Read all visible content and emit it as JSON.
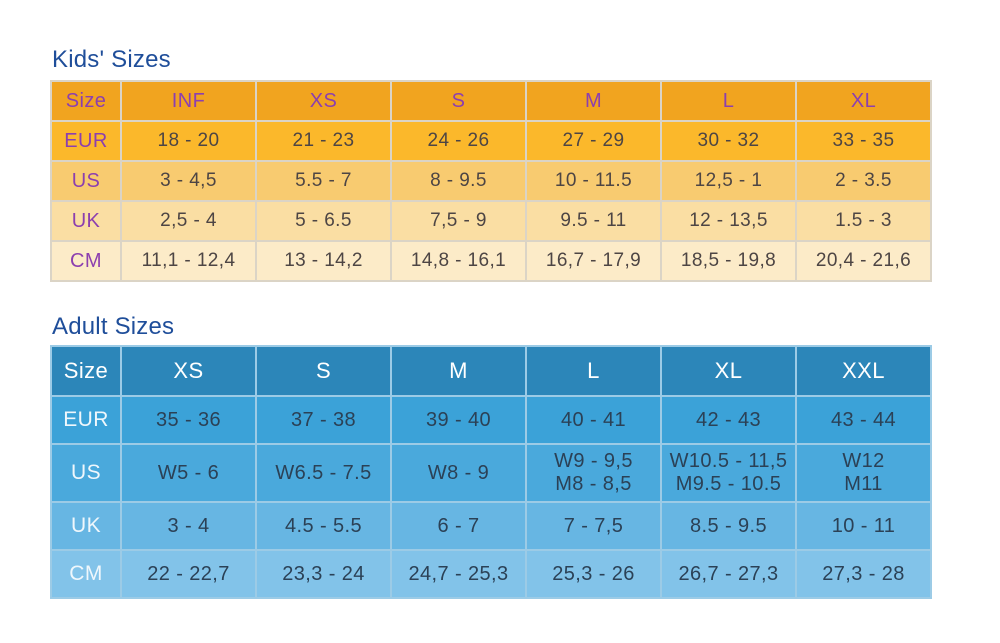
{
  "page": {
    "background": "#FFFFFF",
    "title_color": "#1F4E9A"
  },
  "kids_table": {
    "title": "Kids' Sizes",
    "columns": [
      "Size",
      "INF",
      "XS",
      "S",
      "M",
      "L",
      "XL"
    ],
    "rows": [
      {
        "label": "EUR",
        "values": [
          "18 - 20",
          "21 - 23",
          "24 - 26",
          "27 - 29",
          "30 - 32",
          "33 - 35"
        ]
      },
      {
        "label": "US",
        "values": [
          "3 - 4,5",
          "5.5 - 7",
          "8 - 9.5",
          "10 - 11.5",
          "12,5 - 1",
          "2 - 3.5"
        ]
      },
      {
        "label": "UK",
        "values": [
          "2,5 - 4",
          "5 - 6.5",
          "7,5 - 9",
          "9.5 - 11",
          "12 - 13,5",
          "1.5 - 3"
        ]
      },
      {
        "label": "CM",
        "values": [
          "11,1 - 12,4",
          "13 - 14,2",
          "14,8 - 16,1",
          "16,7 - 17,9",
          "18,5 - 19,8",
          "20,4 - 21,6"
        ]
      }
    ],
    "colors": {
      "header_bg": "#F1A41F",
      "header_text": "#8C3FAF",
      "row_backgrounds": [
        "#FBB82B",
        "#F8CB70",
        "#FADEA3",
        "#FCEBC8"
      ],
      "label_text": "#8C3FAF",
      "value_text": "#4D4544",
      "divider": "#DBD4C6"
    }
  },
  "adult_table": {
    "title": "Adult Sizes",
    "columns": [
      "Size",
      "XS",
      "S",
      "M",
      "L",
      "XL",
      "XXL"
    ],
    "rows": [
      {
        "label": "EUR",
        "values": [
          "35 - 36",
          "37 - 38",
          "39 - 40",
          "40 - 41",
          "42 - 43",
          "43 - 44"
        ]
      },
      {
        "label": "US",
        "values": [
          "W5 - 6",
          "W6.5 - 7.5",
          "W8 - 9",
          "W9 - 9,5\nM8 - 8,5",
          "W10.5 - 11,5\nM9.5 - 10.5",
          "W12\nM11"
        ]
      },
      {
        "label": "UK",
        "values": [
          "3 - 4",
          "4.5 - 5.5",
          "6 - 7",
          "7 - 7,5",
          "8.5 - 9.5",
          "10 - 11"
        ]
      },
      {
        "label": "CM",
        "values": [
          "22 - 22,7",
          "23,3 - 24",
          "24,7 - 25,3",
          "25,3 - 26",
          "26,7 - 27,3",
          "27,3 - 28"
        ]
      }
    ],
    "colors": {
      "header_bg": "#2C86B9",
      "header_text": "#FFFFFF",
      "row_backgrounds": [
        "#3BA2D8",
        "#4AA9DC",
        "#67B6E3",
        "#82C3E9"
      ],
      "label_text": "#EFF7FC",
      "value_text": "#2B4156",
      "divider": "#9CCBE6"
    }
  }
}
